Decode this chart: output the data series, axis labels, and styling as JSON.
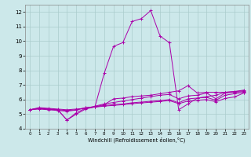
{
  "xlabel": "Windchill (Refroidissement éolien,°C)",
  "bg_color": "#cce8ea",
  "line_color": "#aa00aa",
  "grid_color": "#aacccc",
  "xlim": [
    -0.5,
    23.5
  ],
  "ylim": [
    4,
    12.5
  ],
  "xticks": [
    0,
    1,
    2,
    3,
    4,
    5,
    6,
    7,
    8,
    9,
    10,
    11,
    12,
    13,
    14,
    15,
    16,
    17,
    18,
    19,
    20,
    21,
    22,
    23
  ],
  "yticks": [
    4,
    5,
    6,
    7,
    8,
    9,
    10,
    11,
    12
  ],
  "lines": [
    {
      "x": [
        0,
        1,
        2,
        3,
        4,
        5,
        6,
        7,
        8,
        9,
        10,
        11,
        12,
        13,
        14,
        15,
        16,
        17,
        18,
        19,
        20,
        21,
        22,
        23
      ],
      "y": [
        5.3,
        5.45,
        5.4,
        5.35,
        5.3,
        5.35,
        5.4,
        5.5,
        7.8,
        9.65,
        9.9,
        11.35,
        11.55,
        12.1,
        10.35,
        9.9,
        5.3,
        5.7,
        6.1,
        6.2,
        6.3,
        6.5,
        6.55,
        6.6
      ]
    },
    {
      "x": [
        0,
        1,
        2,
        3,
        4,
        5,
        6,
        7,
        8,
        9,
        10,
        11,
        12,
        13,
        14,
        15,
        16,
        17,
        18,
        19,
        20,
        21,
        22,
        23
      ],
      "y": [
        5.3,
        5.4,
        5.35,
        5.3,
        4.6,
        5.0,
        5.35,
        5.5,
        5.65,
        6.05,
        6.1,
        6.2,
        6.25,
        6.3,
        6.4,
        6.5,
        6.6,
        6.95,
        6.45,
        6.5,
        6.5,
        6.5,
        6.55,
        6.65
      ]
    },
    {
      "x": [
        0,
        1,
        2,
        3,
        4,
        5,
        6,
        7,
        8,
        9,
        10,
        11,
        12,
        13,
        14,
        15,
        16,
        17,
        18,
        19,
        20,
        21,
        22,
        23
      ],
      "y": [
        5.3,
        5.4,
        5.35,
        5.3,
        4.6,
        5.1,
        5.4,
        5.55,
        5.7,
        5.8,
        5.9,
        6.0,
        6.1,
        6.2,
        6.3,
        6.35,
        6.05,
        6.25,
        6.3,
        6.45,
        6.05,
        6.45,
        6.5,
        6.55
      ]
    },
    {
      "x": [
        0,
        1,
        2,
        3,
        4,
        5,
        6,
        7,
        8,
        9,
        10,
        11,
        12,
        13,
        14,
        15,
        16,
        17,
        18,
        19,
        20,
        21,
        22,
        23
      ],
      "y": [
        5.3,
        5.38,
        5.33,
        5.3,
        5.25,
        5.3,
        5.45,
        5.5,
        5.6,
        5.65,
        5.7,
        5.78,
        5.83,
        5.88,
        5.93,
        6.0,
        5.78,
        6.05,
        6.1,
        6.15,
        5.95,
        6.3,
        6.4,
        6.5
      ]
    },
    {
      "x": [
        0,
        1,
        2,
        3,
        4,
        5,
        6,
        7,
        8,
        9,
        10,
        11,
        12,
        13,
        14,
        15,
        16,
        17,
        18,
        19,
        20,
        21,
        22,
        23
      ],
      "y": [
        5.3,
        5.35,
        5.3,
        5.25,
        5.2,
        5.28,
        5.43,
        5.48,
        5.55,
        5.6,
        5.65,
        5.72,
        5.77,
        5.82,
        5.87,
        5.93,
        5.72,
        5.9,
        5.95,
        6.0,
        5.85,
        6.08,
        6.18,
        6.45
      ]
    }
  ]
}
